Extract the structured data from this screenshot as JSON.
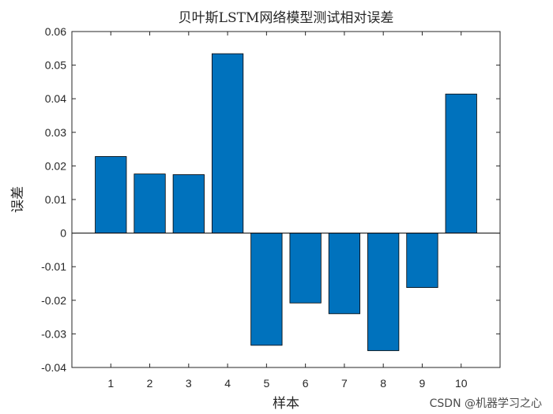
{
  "chart_data": {
    "type": "bar",
    "title": "贝叶斯LSTM网络模型测试相对误差",
    "xlabel": "样本",
    "ylabel": "误差",
    "categories": [
      "1",
      "2",
      "3",
      "4",
      "5",
      "6",
      "7",
      "8",
      "9",
      "10"
    ],
    "values": [
      0.0228,
      0.0176,
      0.0174,
      0.0534,
      -0.0334,
      -0.0208,
      -0.024,
      -0.035,
      -0.0162,
      0.0414
    ],
    "ylim": [
      -0.04,
      0.06
    ],
    "yticks": [
      "-0.04",
      "-0.03",
      "-0.02",
      "-0.01",
      "0",
      "0.01",
      "0.02",
      "0.03",
      "0.04",
      "0.05",
      "0.06"
    ],
    "xlim": [
      0,
      11
    ],
    "grid": false,
    "bar_color": "#0072BD"
  },
  "watermark": "CSDN @机器学习之心"
}
